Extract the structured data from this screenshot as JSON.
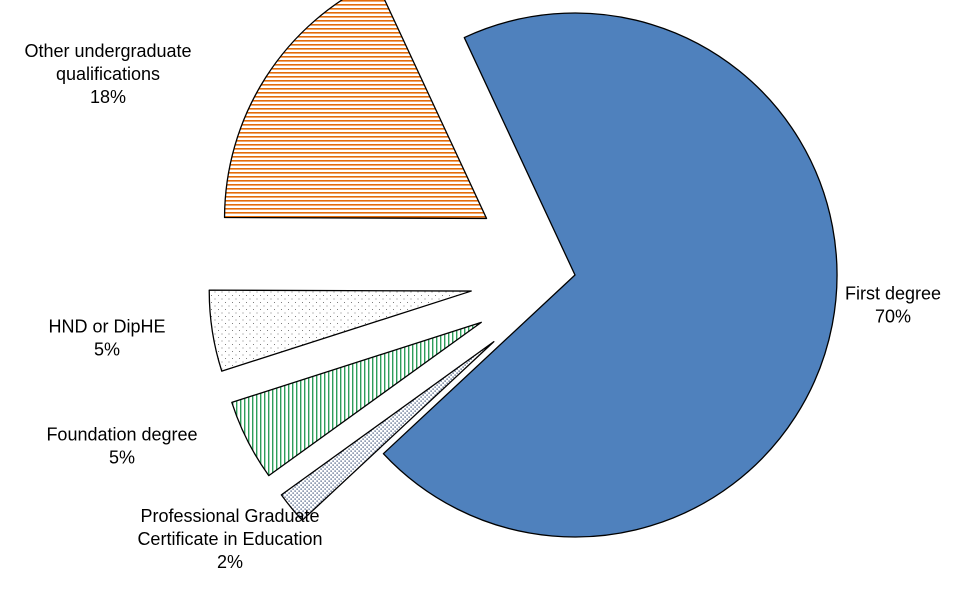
{
  "chart_data": {
    "type": "pie",
    "title": "",
    "start_angle_deg": -25,
    "direction": "clockwise",
    "slices": [
      {
        "name": "First degree",
        "value": 70,
        "label_lines": [
          "First degree",
          "70%"
        ],
        "fill": "pattern-solid",
        "color": "#4f81bd",
        "exploded": false
      },
      {
        "name": "Professional Graduate Certificate in Education",
        "value": 2,
        "label_lines": [
          "Professional Graduate",
          "Certificate in Education",
          "2%"
        ],
        "fill": "pattern-dots-dense",
        "color": "#1f3864",
        "exploded": true
      },
      {
        "name": "Foundation degree",
        "value": 5,
        "label_lines": [
          "Foundation degree",
          "5%"
        ],
        "fill": "pattern-vertical-lines",
        "color": "#2e9e5b",
        "exploded": true
      },
      {
        "name": "HND or DipHE",
        "value": 5,
        "label_lines": [
          "HND or DipHE",
          "5%"
        ],
        "fill": "pattern-dots-sparse",
        "color": "#7f7f7f",
        "exploded": true
      },
      {
        "name": "Other undergraduate qualifications",
        "value": 18,
        "label_lines": [
          "Other undergraduate",
          "qualifications",
          "18%"
        ],
        "fill": "pattern-horizontal-lines",
        "color": "#e46c0a",
        "exploded": true
      }
    ]
  }
}
